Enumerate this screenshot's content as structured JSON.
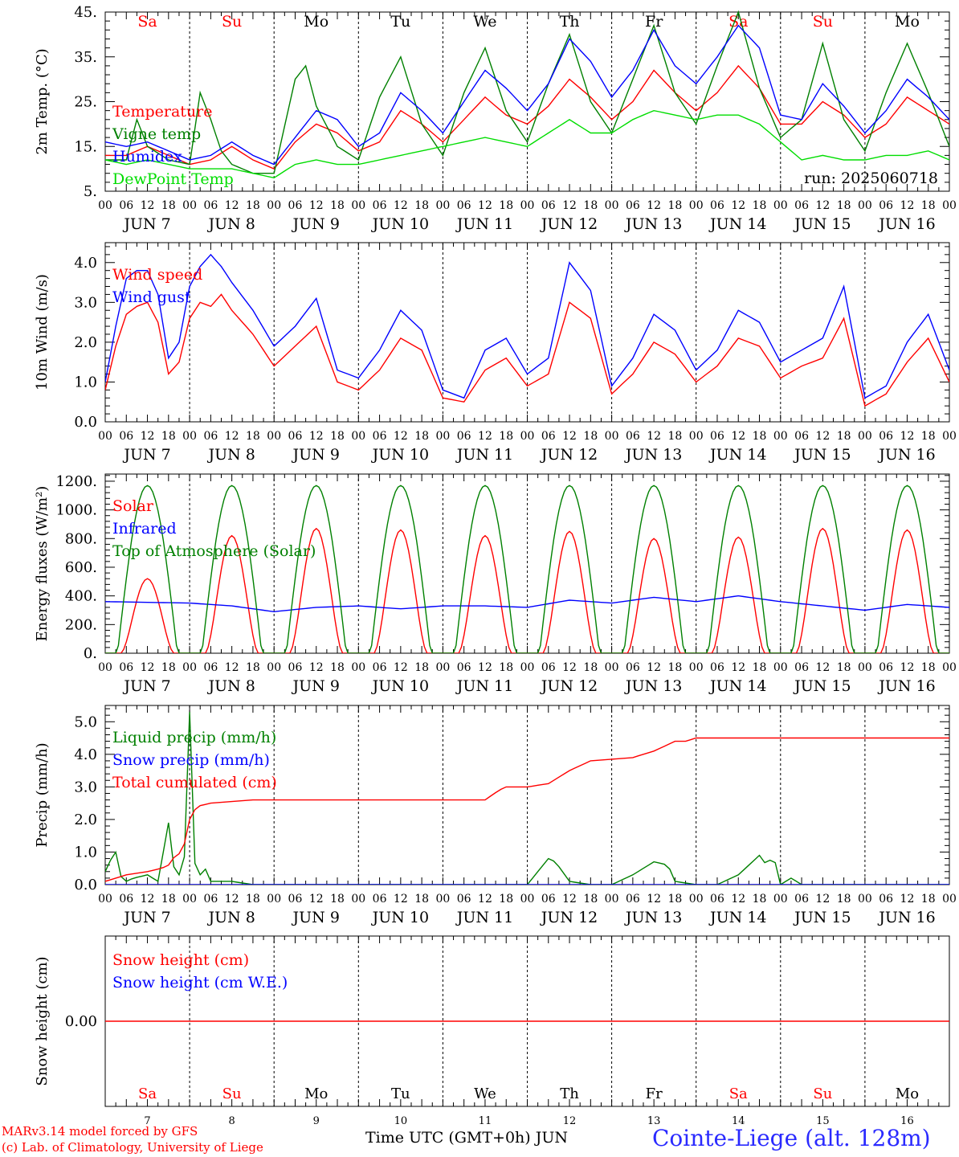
{
  "run_label": "run: 2025060718",
  "day_names": [
    "Sa",
    "Su",
    "Mo",
    "Tu",
    "We",
    "Th",
    "Fr",
    "Sa",
    "Su",
    "Mo"
  ],
  "day_name_colors": [
    "#ff0000",
    "#ff0000",
    "#000000",
    "#000000",
    "#000000",
    "#000000",
    "#000000",
    "#ff0000",
    "#ff0000",
    "#000000"
  ],
  "date_labels": [
    "JUN 7",
    "JUN 8",
    "JUN 9",
    "JUN 10",
    "JUN 11",
    "JUN 12",
    "JUN 13",
    "JUN 14",
    "JUN 15",
    "JUN 16"
  ],
  "hour_ticks": [
    "00",
    "06",
    "12",
    "18"
  ],
  "bottom_day_numbers": [
    "7",
    "8",
    "9",
    "10",
    "11",
    "12",
    "13",
    "14",
    "15",
    "16"
  ],
  "footer": {
    "credit1": "MARv3.14 model forced by GFS",
    "credit2": "(c) Lab. of Climatology, University of Liege",
    "xlabel": "Time UTC (GMT+0h) JUN",
    "station": "Cointe-Liege (alt. 128m)"
  },
  "chart_data": [
    {
      "type": "line",
      "ylabel": "2m Temp. (°C)",
      "ylim": [
        5,
        45
      ],
      "yticks": [
        "5.",
        "15.",
        "25.",
        "35.",
        "45."
      ],
      "x_unit": "hours since JUN 7 00 UTC",
      "series": [
        {
          "name": "Temperature",
          "color": "#ff0000",
          "x": [
            0,
            6,
            12,
            18,
            24,
            30,
            36,
            42,
            48,
            54,
            60,
            66,
            72,
            78,
            84,
            90,
            96,
            102,
            108,
            114,
            120,
            126,
            132,
            138,
            144,
            150,
            156,
            162,
            168,
            174,
            180,
            186,
            192,
            198,
            204,
            210,
            216,
            222,
            228,
            234,
            240
          ],
          "values": [
            13,
            13,
            15,
            13,
            11,
            12,
            15,
            12,
            10,
            16,
            20,
            18,
            14,
            16,
            23,
            20,
            16,
            21,
            26,
            22,
            20,
            24,
            30,
            26,
            21,
            25,
            32,
            27,
            23,
            27,
            33,
            28,
            20,
            20,
            25,
            22,
            17,
            20,
            26,
            23,
            20
          ]
        },
        {
          "name": "Vigne temp",
          "color": "#008000",
          "x": [
            0,
            6,
            9,
            12,
            18,
            24,
            27,
            30,
            33,
            36,
            42,
            48,
            54,
            57,
            60,
            66,
            72,
            78,
            84,
            90,
            96,
            102,
            108,
            114,
            120,
            126,
            132,
            138,
            144,
            150,
            156,
            162,
            168,
            174,
            180,
            186,
            192,
            198,
            204,
            210,
            216,
            222,
            228,
            234,
            240
          ],
          "values": [
            12,
            12,
            21,
            15,
            12,
            11,
            27,
            21,
            14,
            11,
            9,
            9,
            30,
            33,
            24,
            15,
            12,
            26,
            35,
            20,
            13,
            27,
            37,
            23,
            16,
            29,
            40,
            25,
            18,
            30,
            42,
            27,
            20,
            33,
            45,
            28,
            17,
            21,
            38,
            21,
            14,
            27,
            38,
            27,
            15
          ]
        },
        {
          "name": "Humidex",
          "color": "#0000ff",
          "x": [
            0,
            6,
            12,
            18,
            24,
            30,
            36,
            42,
            48,
            54,
            60,
            66,
            72,
            78,
            84,
            90,
            96,
            102,
            108,
            114,
            120,
            126,
            132,
            138,
            144,
            150,
            156,
            162,
            168,
            174,
            180,
            186,
            192,
            198,
            204,
            210,
            216,
            222,
            228,
            234,
            240
          ],
          "values": [
            16,
            15,
            16,
            14,
            12,
            13,
            16,
            13,
            11,
            17,
            23,
            21,
            15,
            18,
            27,
            23,
            18,
            25,
            32,
            28,
            23,
            29,
            39,
            34,
            26,
            32,
            41,
            33,
            29,
            35,
            42,
            37,
            22,
            21,
            29,
            24,
            18,
            23,
            30,
            26,
            21
          ]
        },
        {
          "name": "DewPoint Temp",
          "color": "#00dd00",
          "x": [
            0,
            6,
            12,
            18,
            24,
            30,
            36,
            42,
            48,
            54,
            60,
            66,
            72,
            78,
            84,
            90,
            96,
            102,
            108,
            114,
            120,
            126,
            132,
            138,
            144,
            150,
            156,
            162,
            168,
            174,
            180,
            186,
            192,
            198,
            204,
            210,
            216,
            222,
            228,
            234,
            240
          ],
          "values": [
            12,
            11,
            12,
            11,
            10,
            10,
            10,
            9,
            8,
            11,
            12,
            11,
            11,
            12,
            13,
            14,
            15,
            16,
            17,
            16,
            15,
            18,
            21,
            18,
            18,
            21,
            23,
            22,
            21,
            22,
            22,
            20,
            16,
            12,
            13,
            12,
            12,
            13,
            13,
            14,
            12
          ]
        }
      ]
    },
    {
      "type": "line",
      "ylabel": "10m Wind (m/s)",
      "ylim": [
        0,
        4.5
      ],
      "yticks": [
        "0.0",
        "1.0",
        "2.0",
        "3.0",
        "4.0"
      ],
      "x_unit": "hours since JUN 7 00 UTC",
      "series": [
        {
          "name": "Wind speed",
          "color": "#ff0000",
          "x": [
            0,
            3,
            6,
            9,
            12,
            15,
            18,
            21,
            24,
            27,
            30,
            33,
            36,
            42,
            48,
            54,
            60,
            66,
            72,
            78,
            84,
            90,
            96,
            102,
            108,
            114,
            120,
            126,
            132,
            138,
            144,
            150,
            156,
            162,
            168,
            174,
            180,
            186,
            192,
            198,
            204,
            210,
            216,
            222,
            228,
            234,
            240
          ],
          "values": [
            0.8,
            1.9,
            2.7,
            2.9,
            3.0,
            2.5,
            1.2,
            1.5,
            2.6,
            3.0,
            2.9,
            3.2,
            2.8,
            2.2,
            1.4,
            1.9,
            2.4,
            1.0,
            0.8,
            1.3,
            2.1,
            1.8,
            0.6,
            0.5,
            1.3,
            1.6,
            0.9,
            1.2,
            3.0,
            2.6,
            0.7,
            1.2,
            2.0,
            1.7,
            1.0,
            1.4,
            2.1,
            1.9,
            1.1,
            1.4,
            1.6,
            2.6,
            0.4,
            0.7,
            1.5,
            2.1,
            1.0
          ]
        },
        {
          "name": "Wind gust",
          "color": "#0000ff",
          "x": [
            0,
            3,
            6,
            9,
            12,
            15,
            18,
            21,
            24,
            27,
            30,
            33,
            36,
            42,
            48,
            54,
            60,
            66,
            72,
            78,
            84,
            90,
            96,
            102,
            108,
            114,
            120,
            126,
            132,
            138,
            144,
            150,
            156,
            162,
            168,
            174,
            180,
            186,
            192,
            198,
            204,
            210,
            216,
            222,
            228,
            234,
            240
          ],
          "values": [
            1.0,
            2.4,
            3.6,
            3.8,
            3.8,
            3.2,
            1.6,
            2.0,
            3.4,
            3.9,
            4.2,
            3.9,
            3.5,
            2.8,
            1.9,
            2.4,
            3.1,
            1.3,
            1.1,
            1.8,
            2.8,
            2.3,
            0.8,
            0.6,
            1.8,
            2.1,
            1.2,
            1.6,
            4.0,
            3.3,
            0.9,
            1.6,
            2.7,
            2.3,
            1.3,
            1.8,
            2.8,
            2.5,
            1.5,
            1.8,
            2.1,
            3.4,
            0.6,
            0.9,
            2.0,
            2.7,
            1.3
          ]
        }
      ]
    },
    {
      "type": "line",
      "ylabel": "Energy fluxes (W/m²)",
      "ylim": [
        0,
        1250
      ],
      "yticks": [
        "0.",
        "200.",
        "400.",
        "600.",
        "800.",
        "1000.",
        "1200."
      ],
      "x_unit": "hours since JUN 7 00 UTC",
      "solar_daily_peaks": [
        520,
        820,
        870,
        860,
        820,
        850,
        800,
        810,
        870,
        860
      ],
      "series": [
        {
          "name": "Solar",
          "color": "#ff0000"
        },
        {
          "name": "Infrared",
          "color": "#0000ff",
          "x": [
            0,
            12,
            24,
            36,
            48,
            60,
            72,
            84,
            96,
            108,
            120,
            132,
            144,
            156,
            168,
            180,
            192,
            204,
            216,
            228,
            240
          ],
          "values": [
            360,
            355,
            350,
            330,
            290,
            320,
            330,
            310,
            330,
            330,
            320,
            370,
            350,
            390,
            360,
            400,
            360,
            330,
            300,
            340,
            320
          ]
        },
        {
          "name": "Top of Atmosphere (Solar)",
          "color": "#008000",
          "daily_peak": 1170
        }
      ]
    },
    {
      "type": "line",
      "ylabel": "Precip (mm/h)",
      "ylim": [
        0,
        5.5
      ],
      "yticks": [
        "0.0",
        "1.0",
        "2.0",
        "3.0",
        "4.0",
        "5.0"
      ],
      "x_unit": "hours since JUN 7 00 UTC",
      "series": [
        {
          "name": "Liquid precip (mm/h)",
          "color": "#008000",
          "x": [
            0,
            1,
            2,
            3,
            4,
            5,
            6,
            8,
            12,
            15,
            18,
            19,
            20,
            21,
            22,
            23,
            24,
            25,
            26,
            27,
            28,
            30,
            32,
            36,
            42,
            48,
            114,
            120,
            126,
            128,
            132,
            138,
            144,
            150,
            156,
            160,
            162,
            168,
            174,
            180,
            186,
            188,
            190,
            192,
            195,
            198,
            240
          ],
          "values": [
            0.4,
            0.5,
            1.0,
            1.0,
            0.2,
            0.3,
            0.1,
            0.2,
            0.3,
            0.1,
            1.9,
            0.3,
            0.8,
            0.3,
            1.5,
            0.2,
            5.3,
            0.3,
            1.0,
            0.3,
            0.6,
            0.1,
            0.1,
            0.1,
            0.0,
            0.0,
            0.0,
            0.0,
            0.8,
            0.7,
            0.1,
            0.0,
            0.0,
            0.3,
            0.7,
            0.6,
            0.1,
            0.0,
            0.0,
            0.3,
            0.9,
            0.6,
            0.9,
            0.0,
            0.2,
            0.0,
            0.0
          ]
        },
        {
          "name": "Snow precip (mm/h)",
          "color": "#0000ff",
          "x": [
            0,
            240
          ],
          "values": [
            0,
            0
          ]
        },
        {
          "name": "Total cumulated (cm)",
          "color": "#ff0000",
          "x": [
            0,
            6,
            12,
            16,
            18,
            20,
            22,
            24,
            26,
            30,
            36,
            42,
            48,
            108,
            112,
            114,
            120,
            126,
            132,
            138,
            144,
            150,
            156,
            162,
            165,
            168,
            180,
            240
          ],
          "values": [
            0.1,
            0.3,
            0.4,
            0.5,
            0.6,
            0.9,
            1.0,
            2.0,
            2.4,
            2.5,
            2.55,
            2.6,
            2.6,
            2.6,
            2.9,
            3.0,
            3.0,
            3.1,
            3.5,
            3.8,
            3.85,
            3.9,
            4.1,
            4.4,
            4.4,
            4.5,
            4.5,
            4.5
          ]
        }
      ]
    },
    {
      "type": "line",
      "ylabel": "Snow height (cm)",
      "yticks": [
        "0.00"
      ],
      "x_unit": "hours since JUN 7 00 UTC",
      "series": [
        {
          "name": "Snow height (cm)",
          "color": "#ff0000",
          "x": [
            0,
            240
          ],
          "values": [
            0,
            0
          ]
        },
        {
          "name": "Snow height (cm W.E.)",
          "color": "#0000ff"
        }
      ]
    }
  ]
}
